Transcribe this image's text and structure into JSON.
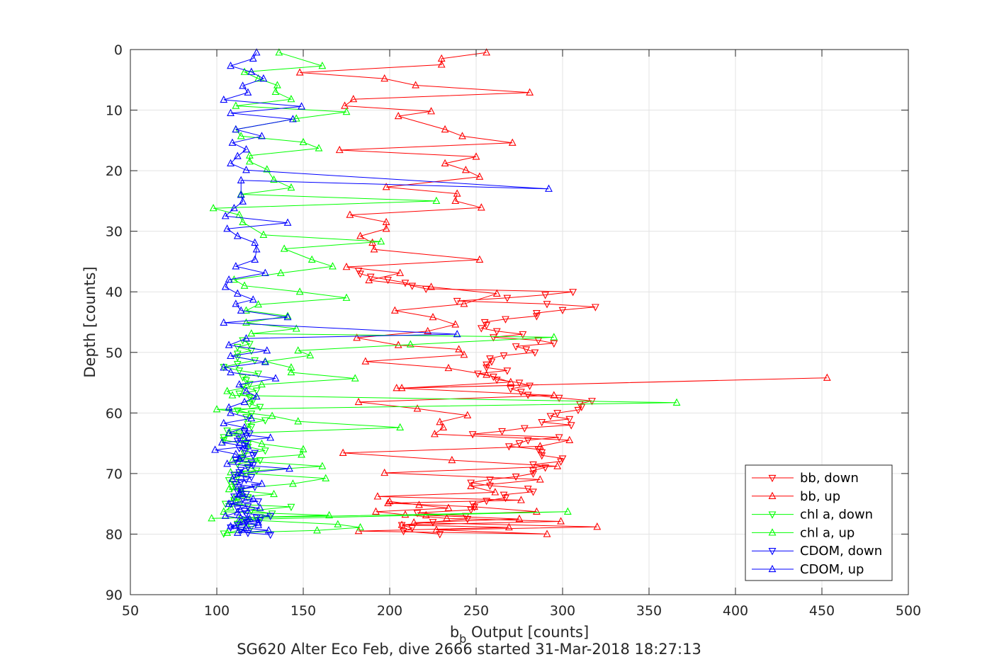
{
  "chart_data": {
    "type": "line",
    "title": "",
    "caption": "SG620 Alter Eco Feb, dive 2666 started 31-Mar-2018 18:27:13",
    "xlabel_main": "b",
    "xlabel_sub": "b",
    "xlabel_rest": " Output [counts]",
    "ylabel": "Depth [counts]",
    "xlim": [
      50,
      500
    ],
    "ylim": [
      0,
      90
    ],
    "y_reversed": true,
    "grid": true,
    "legend_position": "bottom-right",
    "xticks": [
      "50",
      "100",
      "150",
      "200",
      "250",
      "300",
      "350",
      "400",
      "450",
      "500"
    ],
    "yticks": [
      "0",
      "10",
      "20",
      "30",
      "40",
      "50",
      "60",
      "70",
      "80",
      "90"
    ],
    "series": [
      {
        "name": "bb, down",
        "color": "#ff0000",
        "marker": "triangle-down",
        "x": [
          229,
          208,
          213,
          207,
          225,
          245,
          244,
          216,
          247,
          249,
          248,
          256,
          267,
          266,
          283,
          280,
          258,
          247,
          258,
          273,
          283,
          283,
          290,
          283,
          299,
          300,
          288,
          288,
          286,
          269,
          275,
          280,
          298,
          248,
          265,
          278,
          305,
          288,
          304,
          293,
          297,
          309,
          311,
          310,
          317,
          298,
          280,
          276,
          270,
          281,
          275,
          262,
          260,
          251,
          268,
          256,
          256,
          259,
          258,
          266,
          284,
          279,
          273,
          295,
          286,
          260,
          277,
          262,
          253,
          256,
          255,
          267,
          285,
          285,
          300,
          319,
          291,
          239,
          268,
          290,
          306,
          221,
          213,
          209,
          199,
          189,
          183,
          182
        ],
        "y": [
          80,
          79.5,
          79,
          78.5,
          78,
          77.5,
          77,
          76.5,
          76,
          75.5,
          75,
          74.5,
          74,
          73.5,
          73,
          72.5,
          72,
          71.5,
          71,
          70.5,
          70,
          69.5,
          69,
          68.5,
          68,
          67.5,
          67,
          66.5,
          66,
          65.5,
          65,
          64.5,
          64,
          63.5,
          63,
          62.5,
          62,
          61.5,
          61,
          60.5,
          60,
          59.5,
          59,
          58.5,
          58,
          57.5,
          57,
          56.5,
          56,
          55.5,
          55,
          54.5,
          54,
          53.5,
          53,
          52.5,
          52,
          51.5,
          51,
          50.5,
          50,
          49.5,
          49,
          48.5,
          48,
          47.5,
          47,
          46.5,
          46,
          45.5,
          45,
          44.5,
          44,
          43.5,
          43,
          42.5,
          42,
          41.5,
          41,
          40.5,
          40,
          39.5,
          39,
          38.5,
          38,
          37.5,
          37,
          36.5
        ]
      },
      {
        "name": "bb, up",
        "color": "#ff0000",
        "marker": "triangle-up",
        "x": [
          256,
          230,
          230,
          148,
          197,
          215,
          281,
          179,
          174,
          224,
          205,
          232,
          242,
          271,
          171,
          250,
          232,
          244,
          252,
          198,
          239,
          238,
          253,
          177,
          198,
          198,
          183,
          190,
          191,
          252,
          175,
          206,
          188,
          224,
          262,
          243,
          203,
          225,
          238,
          222,
          181,
          205,
          240,
          243,
          186,
          234,
          256,
          270,
          207,
          453,
          204,
          295,
          182,
          216,
          245,
          229,
          231,
          226,
          304,
          287,
          173,
          236,
          297,
          197,
          287,
          247,
          261,
          193,
          276,
          199,
          249,
          285,
          221,
          275,
          214,
          320,
          227,
          291,
          182,
          269,
          207,
          299,
          233,
          209,
          192,
          234,
          217,
          200
        ],
        "y": [
          0.5,
          1.5,
          2.5,
          3.8,
          4.8,
          5.9,
          7.1,
          8.2,
          9.3,
          10.2,
          11.0,
          13.2,
          14.3,
          15.4,
          16.6,
          17.7,
          18.8,
          19.9,
          21.0,
          22.7,
          23.8,
          25.0,
          26.1,
          27.3,
          28.5,
          29.6,
          30.8,
          31.9,
          33.0,
          34.7,
          35.9,
          36.9,
          38.1,
          39.2,
          40.3,
          42.0,
          43.1,
          44.2,
          45.4,
          46.5,
          47.6,
          48.8,
          49.5,
          50.4,
          51.5,
          52.6,
          53.7,
          54.9,
          55.9,
          54.2,
          55.9,
          57.1,
          58.2,
          59.3,
          60.4,
          61.5,
          62.4,
          63.5,
          64.5,
          65.5,
          66.6,
          67.8,
          68.8,
          69.9,
          71.0,
          72.1,
          73.1,
          73.8,
          74.4,
          74.9,
          75.5,
          76.3,
          76.9,
          77.5,
          78.1,
          78.8,
          79.3,
          80.0,
          79.5,
          78.9,
          78.5,
          77.9,
          77.4,
          76.8,
          76.3,
          75.7,
          75.2,
          74.6
        ]
      },
      {
        "name": "chl a, down",
        "color": "#00ff00",
        "marker": "triangle-down",
        "x": [
          104,
          114,
          120,
          112,
          118,
          125,
          132,
          120,
          143,
          105,
          110,
          118,
          114,
          114,
          109,
          110,
          107,
          112,
          117,
          123,
          118,
          112,
          125,
          114,
          116,
          128,
          118,
          118,
          104,
          104,
          113,
          106,
          120,
          118,
          128,
          117,
          120,
          112,
          125,
          119,
          121,
          119,
          113,
          123,
          115,
          119,
          117,
          115,
          124,
          113,
          104,
          112,
          122,
          112,
          112,
          120,
          112,
          119,
          115
        ],
        "y": [
          79.9,
          79.3,
          78.8,
          78.3,
          77.7,
          77.2,
          76.6,
          76.1,
          75.5,
          75.0,
          74.4,
          73.9,
          73.3,
          72.8,
          72.2,
          71.7,
          71.1,
          70.6,
          70.0,
          69.5,
          68.9,
          68.4,
          67.8,
          67.3,
          66.7,
          66.2,
          65.6,
          65.1,
          64.5,
          64.0,
          63.4,
          62.9,
          62.3,
          61.8,
          61.2,
          60.7,
          60.1,
          59.6,
          59.0,
          58.5,
          57.9,
          57.4,
          56.8,
          56.3,
          55.7,
          55.2,
          54.6,
          54.1,
          53.5,
          53.0,
          52.4,
          51.9,
          51.3,
          50.8,
          50.2,
          49.7,
          49.1,
          48.6,
          48.0
        ]
      },
      {
        "name": "chl a, up",
        "color": "#00ff00",
        "marker": "triangle-up",
        "x": [
          136,
          161,
          116,
          124,
          135,
          134,
          143,
          111,
          175,
          146,
          111,
          114,
          150,
          159,
          119,
          119,
          129,
          133,
          143,
          114,
          227,
          98,
          113,
          115,
          127,
          195,
          139,
          155,
          167,
          137,
          110,
          116,
          148,
          175,
          124,
          117,
          141,
          117,
          146,
          120,
          295,
          212,
          147,
          154,
          128,
          143,
          143,
          180,
          126,
          106,
          109,
          366,
          100,
          132,
          147,
          206,
          107,
          116,
          126,
          150,
          149,
          109,
          161,
          108,
          163,
          144,
          107,
          133,
          110,
          113,
          108,
          104,
          165,
          97,
          303,
          113,
          170,
          183,
          158,
          106
        ],
        "y": [
          0.5,
          2.7,
          3.7,
          4.8,
          5.9,
          7.0,
          8.2,
          9.3,
          10.3,
          11.4,
          13.2,
          14.3,
          15.3,
          16.3,
          17.5,
          18.5,
          19.8,
          21.5,
          22.8,
          23.9,
          25.0,
          26.2,
          27.3,
          28.5,
          30.6,
          31.7,
          32.9,
          34.7,
          35.8,
          36.9,
          38.0,
          39.0,
          40.0,
          41.0,
          42.1,
          43.1,
          44.0,
          45.1,
          46.1,
          46.9,
          47.5,
          48.7,
          49.7,
          50.5,
          51.5,
          52.5,
          53.3,
          54.3,
          55.3,
          56.4,
          57.1,
          58.3,
          59.4,
          60.5,
          61.4,
          62.4,
          63.4,
          64.3,
          65.1,
          66.0,
          66.9,
          67.8,
          68.8,
          69.8,
          70.8,
          71.7,
          72.6,
          73.4,
          74.0,
          74.8,
          75.6,
          76.3,
          76.9,
          77.4,
          76.3,
          77.6,
          78.4,
          78.9,
          79.4,
          79.8
        ]
      },
      {
        "name": "CDOM, down",
        "color": "#0000ff",
        "marker": "triangle-down",
        "x": [
          131,
          118,
          114,
          108,
          112,
          117,
          125,
          123,
          131,
          117,
          116,
          112,
          118,
          108,
          124,
          115,
          110,
          117,
          112,
          114,
          122,
          111,
          114,
          117,
          120,
          110,
          113,
          114,
          118,
          121,
          120,
          111,
          115,
          121,
          122,
          116,
          113,
          116,
          117,
          112,
          113,
          117,
          119,
          116
        ],
        "y": [
          80.1,
          79.8,
          79.3,
          78.9,
          78.5,
          78.1,
          77.7,
          77.3,
          77.0,
          76.6,
          76.2,
          75.8,
          75.4,
          75.0,
          74.6,
          74.2,
          73.8,
          73.4,
          73.0,
          72.6,
          72.2,
          71.8,
          71.4,
          71.0,
          70.6,
          70.2,
          69.8,
          69.4,
          69.0,
          68.6,
          68.2,
          67.8,
          67.4,
          67.0,
          66.6,
          66.2,
          65.8,
          65.4,
          65.0,
          64.6,
          64.2,
          63.8,
          63.4,
          63.0
        ]
      },
      {
        "name": "CDOM, up",
        "color": "#0000ff",
        "marker": "triangle-up",
        "x": [
          123,
          121,
          108,
          120,
          127,
          115,
          118,
          104,
          149,
          108,
          144,
          111,
          126,
          109,
          117,
          112,
          108,
          117,
          292,
          114,
          114,
          115,
          110,
          105,
          141,
          106,
          112,
          122,
          123,
          122,
          111,
          128,
          107,
          105,
          112,
          121,
          111,
          114,
          141,
          104,
          239,
          117,
          107,
          129,
          108,
          128,
          104,
          108,
          134,
          113,
          117,
          123,
          116,
          107,
          108,
          120,
          104,
          116,
          107,
          131,
          103,
          118,
          99,
          111,
          113,
          106,
          142,
          114,
          109,
          126,
          114,
          113,
          121,
          107,
          125,
          112,
          105,
          118,
          113,
          124,
          117,
          130,
          112,
          116,
          108,
          124,
          119,
          113
        ],
        "y": [
          0.5,
          1.5,
          2.7,
          3.7,
          4.8,
          6.0,
          7.1,
          8.3,
          9.4,
          10.5,
          11.5,
          13.2,
          14.3,
          15.4,
          16.5,
          17.6,
          18.8,
          19.9,
          23.0,
          21.6,
          24.0,
          25.1,
          26.2,
          27.5,
          28.6,
          29.6,
          30.8,
          31.9,
          33.0,
          34.7,
          35.8,
          36.9,
          38.0,
          39.2,
          40.3,
          41.3,
          42.0,
          43.1,
          44.2,
          45.1,
          47.0,
          47.7,
          48.8,
          49.7,
          50.6,
          51.6,
          52.5,
          53.3,
          54.3,
          55.3,
          56.4,
          57.3,
          58.2,
          59.1,
          60.0,
          60.9,
          61.7,
          62.4,
          63.3,
          64.1,
          64.9,
          65.5,
          66.1,
          66.8,
          67.6,
          68.4,
          69.2,
          70.0,
          70.9,
          71.7,
          72.6,
          73.4,
          74.2,
          75.0,
          75.7,
          76.4,
          77.0,
          77.6,
          78.1,
          78.5,
          79.0,
          79.4,
          79.8,
          79.3,
          78.7,
          78.1,
          77.5,
          76.9
        ]
      }
    ]
  }
}
